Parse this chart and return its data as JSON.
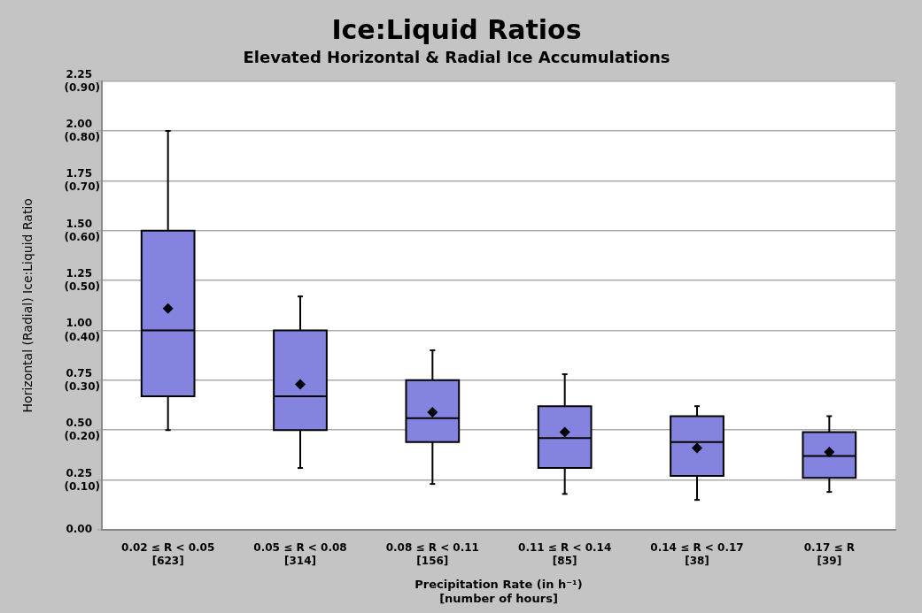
{
  "chart_data": {
    "type": "box",
    "title": "Ice:Liquid Ratios",
    "subtitle": "Elevated Horizontal & Radial Ice Accumulations",
    "xlabel": "Precipitation Rate (in h⁻¹)\n[number of hours]",
    "ylabel": "Horizontal (Radial) Ice:Liquid Ratio",
    "categories": [
      "0.02 ≤ R < 0.05\n[623]",
      "0.05 ≤ R < 0.08\n[314]",
      "0.08 ≤ R < 0.11\n[156]",
      "0.11 ≤ R < 0.14\n[85]",
      "0.14 ≤ R < 0.17\n[38]",
      "0.17 ≤ R\n[39]"
    ],
    "color": "#8484e0",
    "marker": "diamond",
    "grid": "y",
    "legend": false,
    "boxes": [
      {
        "low": 0.5,
        "q1": 0.67,
        "median": 1.0,
        "q3": 1.5,
        "high": 2.0,
        "mean": 1.11
      },
      {
        "low": 0.31,
        "q1": 0.5,
        "median": 0.67,
        "q3": 1.0,
        "high": 1.17,
        "mean": 0.73
      },
      {
        "low": 0.23,
        "q1": 0.44,
        "median": 0.56,
        "q3": 0.75,
        "high": 0.9,
        "mean": 0.59
      },
      {
        "low": 0.18,
        "q1": 0.31,
        "median": 0.46,
        "q3": 0.62,
        "high": 0.78,
        "mean": 0.49
      },
      {
        "low": 0.15,
        "q1": 0.27,
        "median": 0.44,
        "q3": 0.57,
        "high": 0.62,
        "mean": 0.41
      },
      {
        "low": 0.19,
        "q1": 0.26,
        "median": 0.37,
        "q3": 0.49,
        "high": 0.57,
        "mean": 0.39
      }
    ],
    "ylim": [
      0,
      2.25
    ],
    "yticks": [
      {
        "value": 0,
        "label": "0.00"
      },
      0.25,
      {
        "value": 0.5,
        "label": "0.50"
      },
      0.75,
      {
        "value": 1,
        "label": "1.00"
      },
      1.25,
      {
        "value": 1.5,
        "label": "1.50"
      },
      1.75,
      {
        "value": 2,
        "label": "2.00"
      },
      2.25
    ],
    "y2lim": [
      0,
      0.9
    ],
    "y2ticks": [
      {
        "value": 0.1,
        "label": "(0.10)"
      },
      {
        "value": 0.2,
        "label": "(0.20)"
      },
      {
        "value": 0.3,
        "label": "(0.30)"
      },
      {
        "value": 0.4,
        "label": "(0.40)"
      },
      {
        "value": 0.5,
        "label": "(0.50)"
      },
      {
        "value": 0.6,
        "label": "(0.60)"
      },
      {
        "value": 0.7,
        "label": "(0.70)"
      },
      {
        "value": 0.8,
        "label": "(0.80)"
      },
      {
        "value": 0.9,
        "label": "(0.90)"
      }
    ]
  }
}
